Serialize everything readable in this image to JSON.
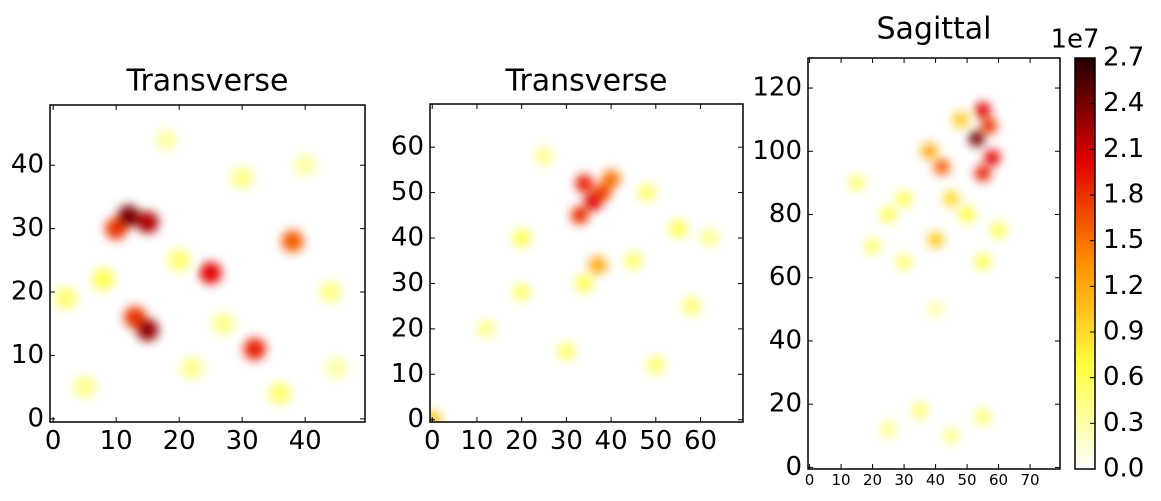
{
  "chart_data": [
    {
      "type": "heatmap",
      "title": "Transverse",
      "xlim": [
        -0.5,
        49.5
      ],
      "ylim": [
        -0.5,
        49.5
      ],
      "xticks": [
        0,
        10,
        20,
        30,
        40
      ],
      "yticks": [
        0,
        10,
        20,
        30,
        40
      ],
      "spots": [
        {
          "x": 12,
          "y": 32,
          "value": 2.4
        },
        {
          "x": 15,
          "y": 31,
          "value": 2.2
        },
        {
          "x": 10,
          "y": 30,
          "value": 1.8
        },
        {
          "x": 25,
          "y": 23,
          "value": 2.0
        },
        {
          "x": 38,
          "y": 28,
          "value": 1.6
        },
        {
          "x": 15,
          "y": 14,
          "value": 2.3
        },
        {
          "x": 13,
          "y": 16,
          "value": 1.8
        },
        {
          "x": 32,
          "y": 11,
          "value": 1.9
        },
        {
          "x": 8,
          "y": 22,
          "value": 0.6
        },
        {
          "x": 22,
          "y": 8,
          "value": 0.4
        },
        {
          "x": 44,
          "y": 20,
          "value": 0.4
        },
        {
          "x": 30,
          "y": 38,
          "value": 0.4
        },
        {
          "x": 2,
          "y": 19,
          "value": 0.5
        },
        {
          "x": 36,
          "y": 4,
          "value": 0.5
        },
        {
          "x": 18,
          "y": 44,
          "value": 0.3
        },
        {
          "x": 40,
          "y": 40,
          "value": 0.3
        },
        {
          "x": 20,
          "y": 25,
          "value": 0.5
        },
        {
          "x": 5,
          "y": 5,
          "value": 0.4
        },
        {
          "x": 45,
          "y": 8,
          "value": 0.3
        },
        {
          "x": 27,
          "y": 15,
          "value": 0.4
        }
      ]
    },
    {
      "type": "heatmap",
      "title": "Transverse",
      "xlim": [
        -0.5,
        69.5
      ],
      "ylim": [
        -0.5,
        69.5
      ],
      "xticks": [
        0,
        10,
        20,
        30,
        40,
        50,
        60
      ],
      "yticks": [
        0,
        10,
        20,
        30,
        40,
        50,
        60
      ],
      "spots": [
        {
          "x": 34,
          "y": 52,
          "value": 1.9
        },
        {
          "x": 38,
          "y": 50,
          "value": 1.7
        },
        {
          "x": 33,
          "y": 45,
          "value": 1.8
        },
        {
          "x": 36,
          "y": 48,
          "value": 2.0
        },
        {
          "x": 40,
          "y": 53,
          "value": 1.5
        },
        {
          "x": 37,
          "y": 34,
          "value": 1.2
        },
        {
          "x": 20,
          "y": 40,
          "value": 0.6
        },
        {
          "x": 55,
          "y": 42,
          "value": 0.6
        },
        {
          "x": 20,
          "y": 28,
          "value": 0.5
        },
        {
          "x": 58,
          "y": 25,
          "value": 0.5
        },
        {
          "x": 48,
          "y": 50,
          "value": 0.5
        },
        {
          "x": 25,
          "y": 58,
          "value": 0.4
        },
        {
          "x": 30,
          "y": 15,
          "value": 0.5
        },
        {
          "x": 50,
          "y": 12,
          "value": 0.5
        },
        {
          "x": 12,
          "y": 20,
          "value": 0.4
        },
        {
          "x": 62,
          "y": 40,
          "value": 0.4
        },
        {
          "x": 34,
          "y": 30,
          "value": 0.6
        },
        {
          "x": 0,
          "y": 0,
          "value": 1.0
        },
        {
          "x": 45,
          "y": 35,
          "value": 0.5
        }
      ]
    },
    {
      "type": "heatmap",
      "title": "Sagittal",
      "xlim": [
        -0.5,
        79.5
      ],
      "ylim": [
        -0.5,
        129.5
      ],
      "xticks": [
        0,
        10,
        20,
        30,
        40,
        50,
        60,
        70
      ],
      "yticks": [
        0,
        20,
        40,
        60,
        80,
        100,
        120
      ],
      "spots": [
        {
          "x": 55,
          "y": 113,
          "value": 2.0
        },
        {
          "x": 57,
          "y": 108,
          "value": 1.8
        },
        {
          "x": 53,
          "y": 104,
          "value": 2.4
        },
        {
          "x": 58,
          "y": 98,
          "value": 2.0
        },
        {
          "x": 55,
          "y": 93,
          "value": 1.9
        },
        {
          "x": 42,
          "y": 95,
          "value": 1.6
        },
        {
          "x": 38,
          "y": 100,
          "value": 1.2
        },
        {
          "x": 48,
          "y": 110,
          "value": 1.0
        },
        {
          "x": 40,
          "y": 72,
          "value": 1.0
        },
        {
          "x": 45,
          "y": 85,
          "value": 0.9
        },
        {
          "x": 25,
          "y": 80,
          "value": 0.6
        },
        {
          "x": 30,
          "y": 65,
          "value": 0.5
        },
        {
          "x": 55,
          "y": 65,
          "value": 0.6
        },
        {
          "x": 15,
          "y": 90,
          "value": 0.5
        },
        {
          "x": 60,
          "y": 75,
          "value": 0.6
        },
        {
          "x": 20,
          "y": 70,
          "value": 0.5
        },
        {
          "x": 35,
          "y": 18,
          "value": 0.5
        },
        {
          "x": 45,
          "y": 10,
          "value": 0.4
        },
        {
          "x": 55,
          "y": 16,
          "value": 0.5
        },
        {
          "x": 25,
          "y": 12,
          "value": 0.4
        },
        {
          "x": 40,
          "y": 50,
          "value": 0.3
        },
        {
          "x": 30,
          "y": 85,
          "value": 0.6
        },
        {
          "x": 50,
          "y": 80,
          "value": 0.7
        }
      ]
    }
  ],
  "colorbar": {
    "label": "1e7",
    "lim": [
      0,
      2.7
    ],
    "ticks": [
      {
        "value": 0,
        "label": "0.0"
      },
      {
        "value": 0.3,
        "label": "0.3"
      },
      {
        "value": 0.6,
        "label": "0.6"
      },
      {
        "value": 0.9,
        "label": "0.9"
      },
      {
        "value": 1.2,
        "label": "1.2"
      },
      {
        "value": 1.5,
        "label": "1.5"
      },
      {
        "value": 1.8,
        "label": "1.8"
      },
      {
        "value": 2.1,
        "label": "2.1"
      },
      {
        "value": 2.4,
        "label": "2.4"
      },
      {
        "value": 2.7,
        "label": "2.7"
      }
    ],
    "colormap": [
      "#ffffff",
      "#ffff40",
      "#ff9000",
      "#e00000",
      "#200000"
    ]
  }
}
